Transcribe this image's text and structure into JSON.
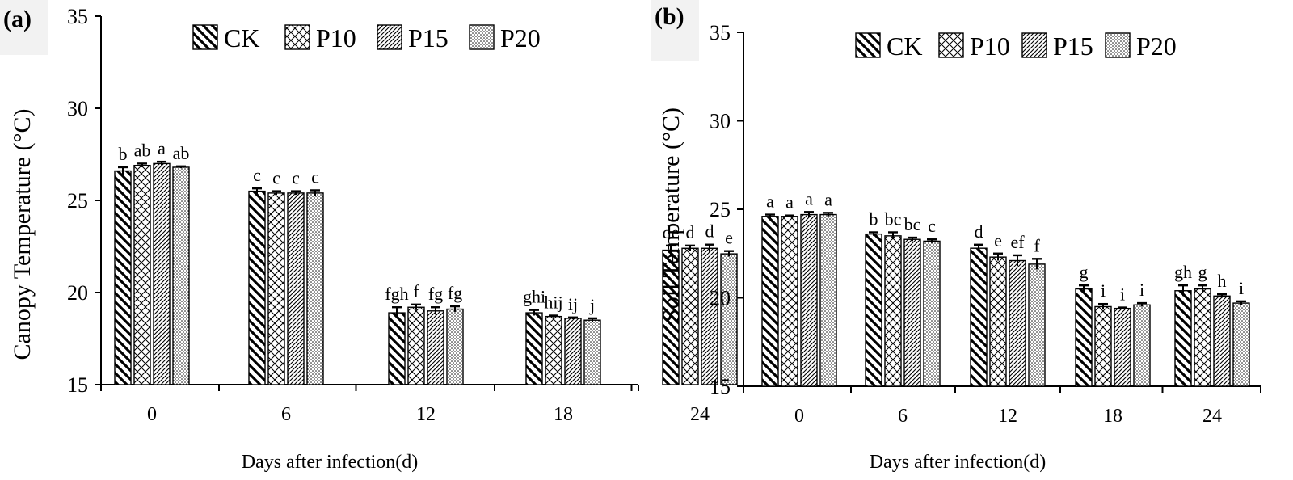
{
  "chart_data": [
    {
      "panel_label": "(a)",
      "type": "bar",
      "title": "",
      "xlabel": "Days after infection(d)",
      "ylabel": "Canopy Temperature (°C)",
      "ylim": [
        15,
        35
      ],
      "yticks": [
        15,
        20,
        25,
        30,
        35
      ],
      "categories": [
        "0",
        "6",
        "12",
        "18",
        "24"
      ],
      "series": [
        {
          "name": "CK",
          "pattern": "hatch-back",
          "values": [
            26.6,
            25.5,
            18.9,
            18.9,
            22.3
          ],
          "errors": [
            0.2,
            0.15,
            0.3,
            0.15,
            0.25
          ],
          "letters": [
            "b",
            "c",
            "fgh",
            "ghi",
            "de"
          ]
        },
        {
          "name": "P10",
          "pattern": "crosshatch",
          "values": [
            26.9,
            25.4,
            19.2,
            18.7,
            22.4
          ],
          "errors": [
            0.1,
            0.1,
            0.15,
            0.05,
            0.15
          ],
          "letters": [
            "ab",
            "c",
            "f",
            "hij",
            "d"
          ]
        },
        {
          "name": "P15",
          "pattern": "hatch-fwd",
          "values": [
            27.0,
            25.4,
            19.0,
            18.6,
            22.4
          ],
          "errors": [
            0.1,
            0.1,
            0.2,
            0.05,
            0.2
          ],
          "letters": [
            "a",
            "c",
            "fg",
            "ij",
            "d"
          ]
        },
        {
          "name": "P20",
          "pattern": "dots",
          "values": [
            26.8,
            25.4,
            19.1,
            18.5,
            22.1
          ],
          "errors": [
            0.05,
            0.15,
            0.15,
            0.1,
            0.15
          ],
          "letters": [
            "ab",
            "c",
            "fg",
            "j",
            "e"
          ]
        }
      ],
      "legend": "top"
    },
    {
      "panel_label": "(b)",
      "type": "bar",
      "title": "",
      "xlabel": "Days after infection(d)",
      "ylabel": "Soil Temperature (°C)",
      "ylim": [
        15,
        35
      ],
      "yticks": [
        15,
        20,
        25,
        30,
        35
      ],
      "categories": [
        "0",
        "6",
        "12",
        "18",
        "24"
      ],
      "series": [
        {
          "name": "CK",
          "pattern": "hatch-back",
          "values": [
            24.6,
            23.6,
            22.8,
            20.5,
            20.4
          ],
          "errors": [
            0.1,
            0.1,
            0.2,
            0.2,
            0.3
          ],
          "letters": [
            "a",
            "b",
            "d",
            "g",
            "gh"
          ]
        },
        {
          "name": "P10",
          "pattern": "crosshatch",
          "values": [
            24.6,
            23.5,
            22.3,
            19.5,
            20.5
          ],
          "errors": [
            0.05,
            0.2,
            0.2,
            0.15,
            0.2
          ],
          "letters": [
            "a",
            "bc",
            "e",
            "i",
            "g"
          ]
        },
        {
          "name": "P15",
          "pattern": "hatch-fwd",
          "values": [
            24.7,
            23.3,
            22.1,
            19.4,
            20.1
          ],
          "errors": [
            0.15,
            0.1,
            0.3,
            0.05,
            0.1
          ],
          "letters": [
            "a",
            "bc",
            "ef",
            "i",
            "h"
          ]
        },
        {
          "name": "P20",
          "pattern": "dots",
          "values": [
            24.7,
            23.2,
            21.9,
            19.6,
            19.7
          ],
          "errors": [
            0.1,
            0.1,
            0.3,
            0.1,
            0.1
          ],
          "letters": [
            "a",
            "c",
            "f",
            "i",
            "i"
          ]
        }
      ],
      "legend": "top"
    }
  ]
}
